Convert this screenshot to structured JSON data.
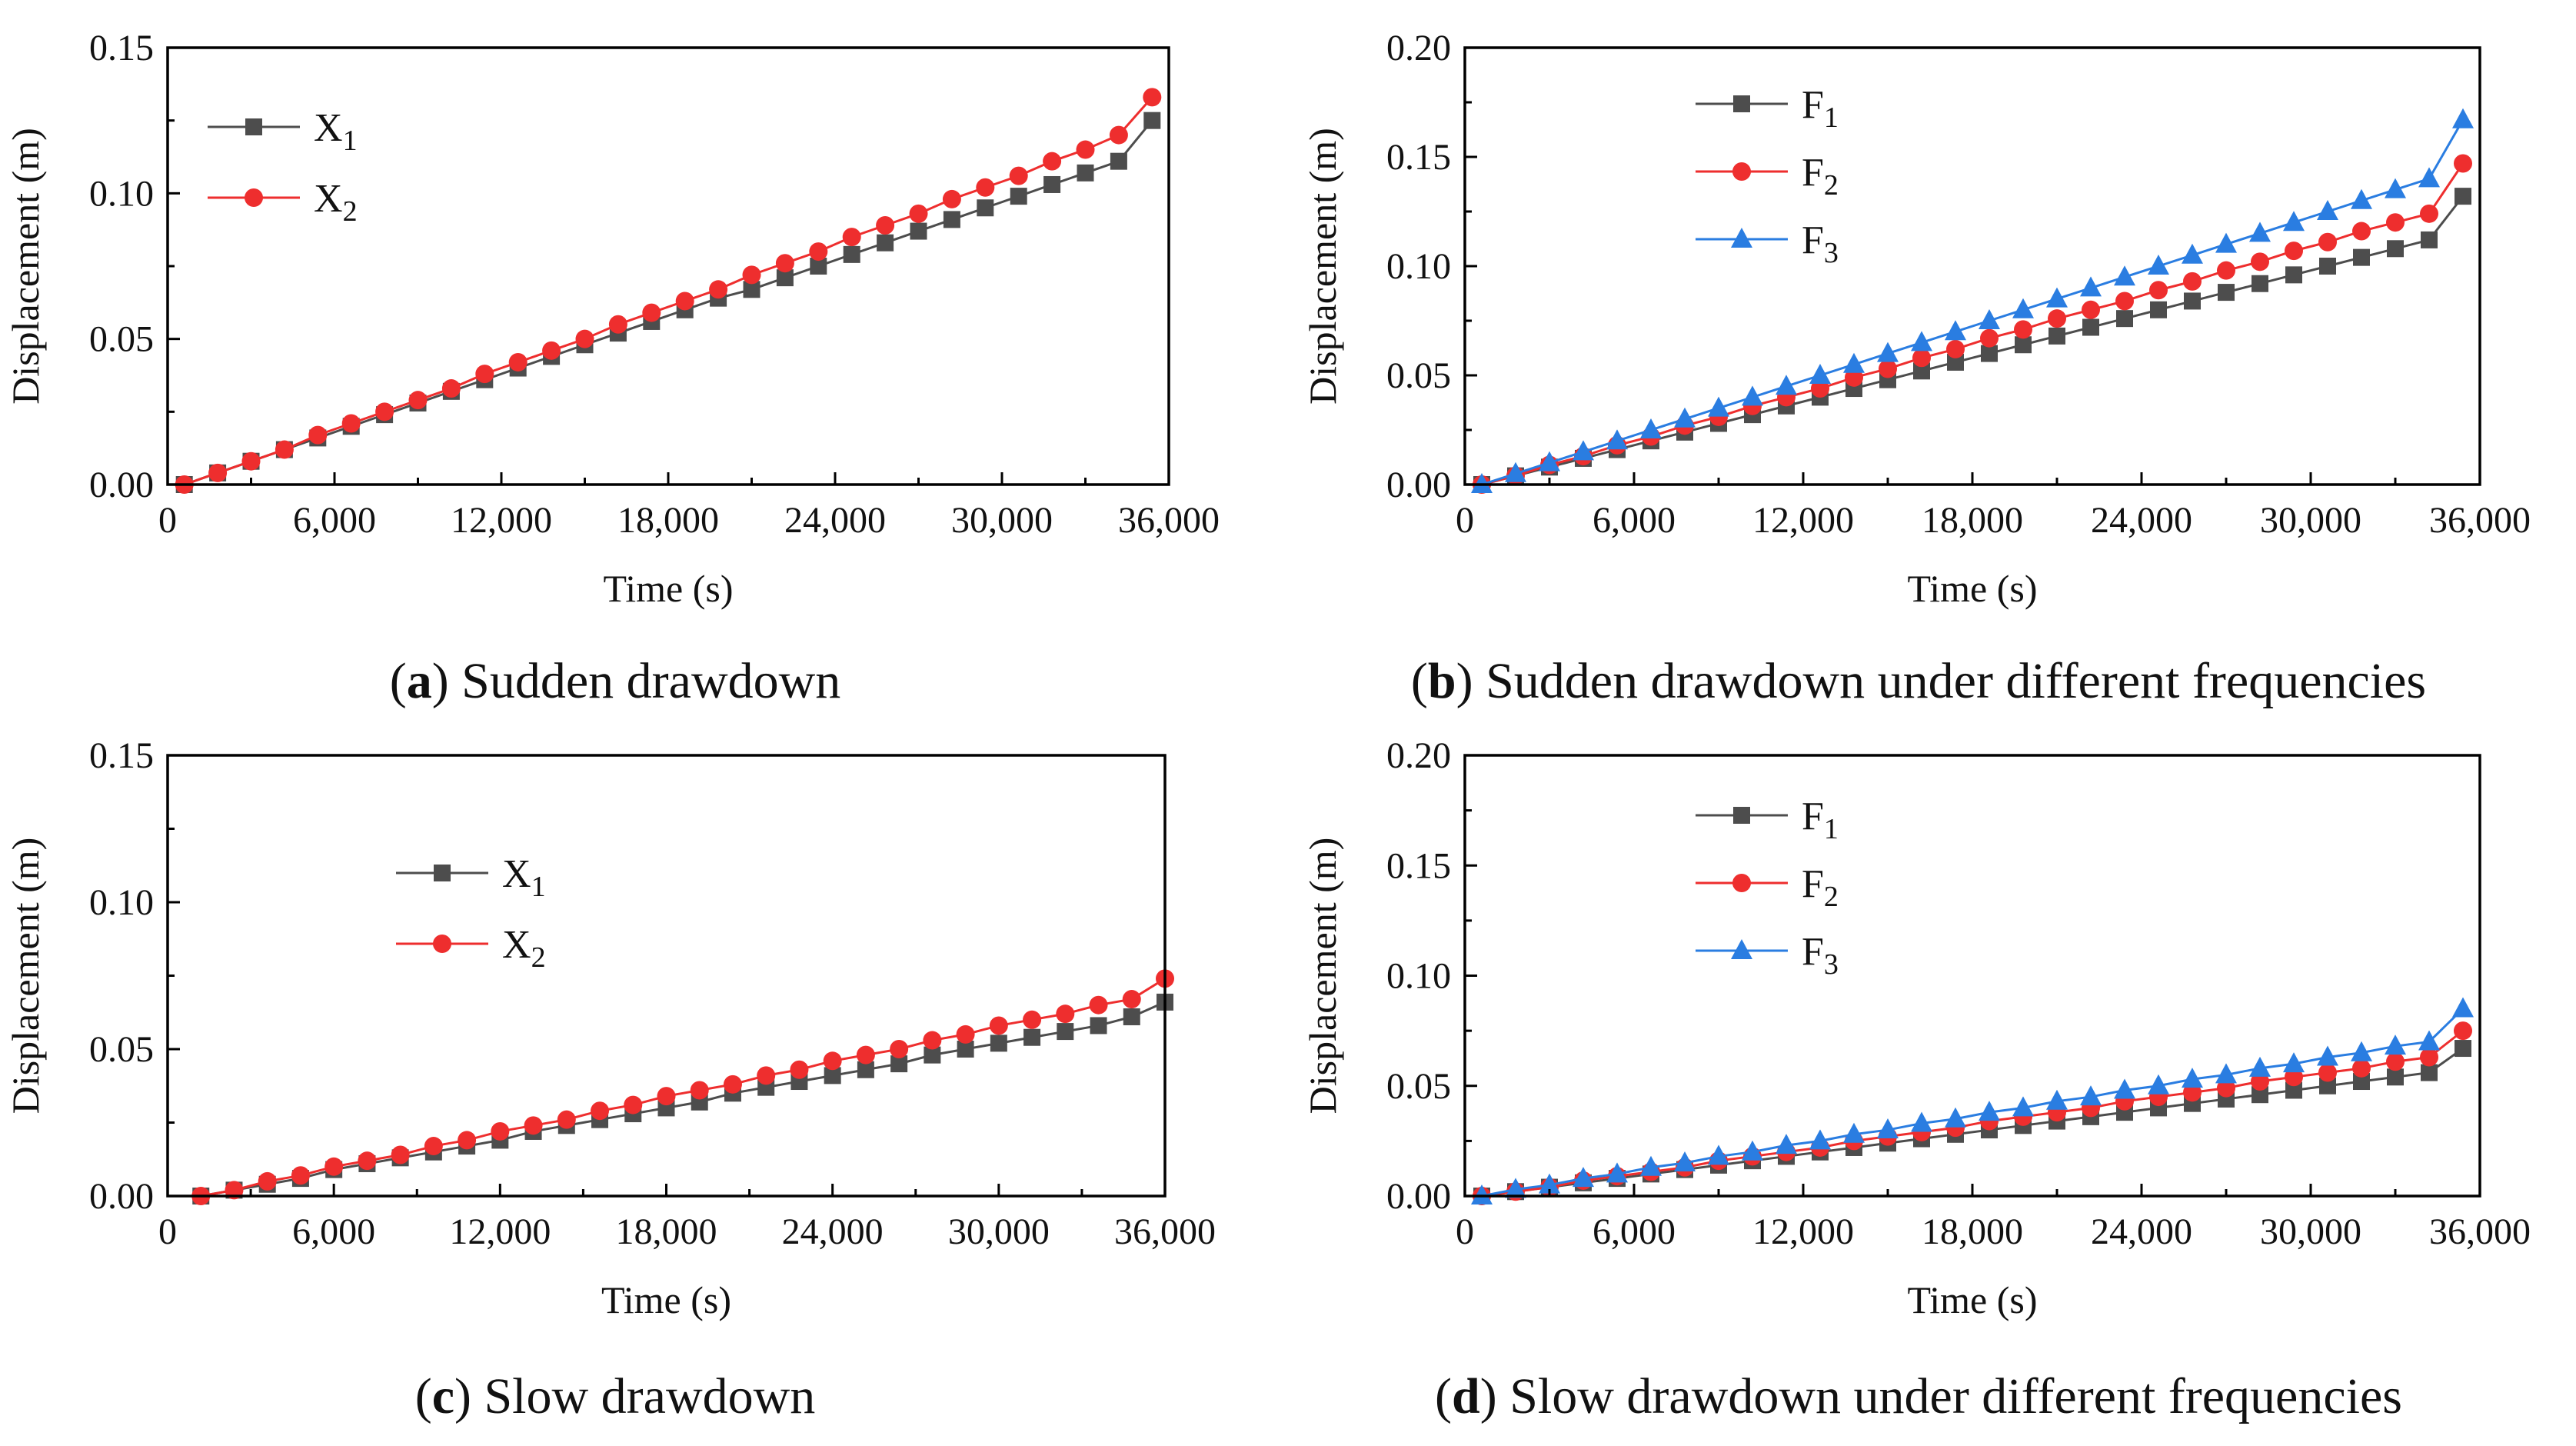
{
  "captions": [
    {
      "letter": "a",
      "text": "Sudden drawdown"
    },
    {
      "letter": "b",
      "text": "Sudden drawdown under different frequencies"
    },
    {
      "letter": "c",
      "text": "Slow drawdown"
    },
    {
      "letter": "d",
      "text": "Slow drawdown under different frequencies"
    }
  ],
  "chart_data": [
    {
      "type": "line",
      "panel": "a",
      "xlabel": "Time (s)",
      "ylabel": "Displacement (m)",
      "xlim": [
        0,
        36000
      ],
      "ylim": [
        0,
        0.15
      ],
      "xticks": [
        0,
        6000,
        12000,
        18000,
        24000,
        30000,
        36000
      ],
      "yticks": [
        0,
        0.05,
        0.1,
        0.15
      ],
      "xtick_labels": [
        "0",
        "6,000",
        "12,000",
        "18,000",
        "24,000",
        "30,000",
        "36,000"
      ],
      "ytick_labels": [
        "0.00",
        "0.05",
        "0.10",
        "0.15"
      ],
      "legend_position": "top-left",
      "x": [
        600,
        1800,
        3000,
        4200,
        5400,
        6600,
        7800,
        9000,
        10200,
        11400,
        12600,
        13800,
        15000,
        16200,
        17400,
        18600,
        19800,
        21000,
        22200,
        23400,
        24600,
        25800,
        27000,
        28200,
        29400,
        30600,
        31800,
        33000,
        34200,
        35400
      ],
      "series": [
        {
          "name": "X",
          "sub": "1",
          "color": "#4d4d4d",
          "marker": "square",
          "values": [
            0.0,
            0.004,
            0.008,
            0.012,
            0.016,
            0.02,
            0.024,
            0.028,
            0.032,
            0.036,
            0.04,
            0.044,
            0.048,
            0.052,
            0.056,
            0.06,
            0.064,
            0.067,
            0.071,
            0.075,
            0.079,
            0.083,
            0.087,
            0.091,
            0.095,
            0.099,
            0.103,
            0.107,
            0.111,
            0.125
          ]
        },
        {
          "name": "X",
          "sub": "2",
          "color": "#ee2e2e",
          "marker": "circle",
          "values": [
            0.0,
            0.004,
            0.008,
            0.012,
            0.017,
            0.021,
            0.025,
            0.029,
            0.033,
            0.038,
            0.042,
            0.046,
            0.05,
            0.055,
            0.059,
            0.063,
            0.067,
            0.072,
            0.076,
            0.08,
            0.085,
            0.089,
            0.093,
            0.098,
            0.102,
            0.106,
            0.111,
            0.115,
            0.12,
            0.133
          ]
        }
      ]
    },
    {
      "type": "line",
      "panel": "b",
      "xlabel": "Time (s)",
      "ylabel": "Displacement (m)",
      "xlim": [
        0,
        36000
      ],
      "ylim": [
        0,
        0.2
      ],
      "xticks": [
        0,
        6000,
        12000,
        18000,
        24000,
        30000,
        36000
      ],
      "yticks": [
        0,
        0.05,
        0.1,
        0.15,
        0.2
      ],
      "xtick_labels": [
        "0",
        "6,000",
        "12,000",
        "18,000",
        "24,000",
        "30,000",
        "36,000"
      ],
      "ytick_labels": [
        "0.00",
        "0.05",
        "0.10",
        "0.15",
        "0.20"
      ],
      "legend_position": "top-center",
      "x": [
        600,
        1800,
        3000,
        4200,
        5400,
        6600,
        7800,
        9000,
        10200,
        11400,
        12600,
        13800,
        15000,
        16200,
        17400,
        18600,
        19800,
        21000,
        22200,
        23400,
        24600,
        25800,
        27000,
        28200,
        29400,
        30600,
        31800,
        33000,
        34200,
        35400
      ],
      "series": [
        {
          "name": "F",
          "sub": "1",
          "color": "#4d4d4d",
          "marker": "square",
          "values": [
            0.0,
            0.004,
            0.008,
            0.012,
            0.016,
            0.02,
            0.024,
            0.028,
            0.032,
            0.036,
            0.04,
            0.044,
            0.048,
            0.052,
            0.056,
            0.06,
            0.064,
            0.068,
            0.072,
            0.076,
            0.08,
            0.084,
            0.088,
            0.092,
            0.096,
            0.1,
            0.104,
            0.108,
            0.112,
            0.132
          ]
        },
        {
          "name": "F",
          "sub": "2",
          "color": "#ee2e2e",
          "marker": "circle",
          "values": [
            0.0,
            0.004,
            0.009,
            0.013,
            0.018,
            0.022,
            0.027,
            0.031,
            0.036,
            0.04,
            0.044,
            0.049,
            0.053,
            0.058,
            0.062,
            0.067,
            0.071,
            0.076,
            0.08,
            0.084,
            0.089,
            0.093,
            0.098,
            0.102,
            0.107,
            0.111,
            0.116,
            0.12,
            0.124,
            0.147
          ]
        },
        {
          "name": "F",
          "sub": "3",
          "color": "#2a7de1",
          "marker": "triangle",
          "values": [
            0.0,
            0.005,
            0.01,
            0.015,
            0.02,
            0.025,
            0.03,
            0.035,
            0.04,
            0.045,
            0.05,
            0.055,
            0.06,
            0.065,
            0.07,
            0.075,
            0.08,
            0.085,
            0.09,
            0.095,
            0.1,
            0.105,
            0.11,
            0.115,
            0.12,
            0.125,
            0.13,
            0.135,
            0.14,
            0.167
          ]
        }
      ]
    },
    {
      "type": "line",
      "panel": "c",
      "xlabel": "Time (s)",
      "ylabel": "Displacement (m)",
      "xlim": [
        0,
        36000
      ],
      "ylim": [
        0,
        0.15
      ],
      "xticks": [
        0,
        6000,
        12000,
        18000,
        24000,
        30000,
        36000
      ],
      "yticks": [
        0,
        0.05,
        0.1,
        0.15
      ],
      "xtick_labels": [
        "0",
        "6,000",
        "12,000",
        "18,000",
        "24,000",
        "30,000",
        "36,000"
      ],
      "ytick_labels": [
        "0.00",
        "0.05",
        "0.10",
        "0.15"
      ],
      "legend_position": "upper-center",
      "x": [
        1200,
        2400,
        3600,
        4800,
        6000,
        7200,
        8400,
        9600,
        10800,
        12000,
        13200,
        14400,
        15600,
        16800,
        18000,
        19200,
        20400,
        21600,
        22800,
        24000,
        25200,
        26400,
        27600,
        28800,
        30000,
        31200,
        32400,
        33600,
        34800,
        36000
      ],
      "series": [
        {
          "name": "X",
          "sub": "1",
          "color": "#4d4d4d",
          "marker": "square",
          "values": [
            0.0,
            0.002,
            0.004,
            0.006,
            0.009,
            0.011,
            0.013,
            0.015,
            0.017,
            0.019,
            0.022,
            0.024,
            0.026,
            0.028,
            0.03,
            0.032,
            0.035,
            0.037,
            0.039,
            0.041,
            0.043,
            0.045,
            0.048,
            0.05,
            0.052,
            0.054,
            0.056,
            0.058,
            0.061,
            0.066
          ]
        },
        {
          "name": "X",
          "sub": "2",
          "color": "#ee2e2e",
          "marker": "circle",
          "values": [
            0.0,
            0.002,
            0.005,
            0.007,
            0.01,
            0.012,
            0.014,
            0.017,
            0.019,
            0.022,
            0.024,
            0.026,
            0.029,
            0.031,
            0.034,
            0.036,
            0.038,
            0.041,
            0.043,
            0.046,
            0.048,
            0.05,
            0.053,
            0.055,
            0.058,
            0.06,
            0.062,
            0.065,
            0.067,
            0.074
          ]
        }
      ]
    },
    {
      "type": "line",
      "panel": "d",
      "xlabel": "Time (s)",
      "ylabel": "Displacement (m)",
      "xlim": [
        0,
        36000
      ],
      "ylim": [
        0,
        0.2
      ],
      "xticks": [
        0,
        6000,
        12000,
        18000,
        24000,
        30000,
        36000
      ],
      "yticks": [
        0,
        0.05,
        0.1,
        0.15,
        0.2
      ],
      "xtick_labels": [
        "0",
        "6,000",
        "12,000",
        "18,000",
        "24,000",
        "30,000",
        "36,000"
      ],
      "ytick_labels": [
        "0.00",
        "0.05",
        "0.10",
        "0.15",
        "0.20"
      ],
      "legend_position": "top-center",
      "x": [
        600,
        1800,
        3000,
        4200,
        5400,
        6600,
        7800,
        9000,
        10200,
        11400,
        12600,
        13800,
        15000,
        16200,
        17400,
        18600,
        19800,
        21000,
        22200,
        23400,
        24600,
        25800,
        27000,
        28200,
        29400,
        30600,
        31800,
        33000,
        34200,
        35400
      ],
      "series": [
        {
          "name": "F",
          "sub": "1",
          "color": "#4d4d4d",
          "marker": "square",
          "values": [
            0.0,
            0.002,
            0.004,
            0.006,
            0.008,
            0.01,
            0.012,
            0.014,
            0.016,
            0.018,
            0.02,
            0.022,
            0.024,
            0.026,
            0.028,
            0.03,
            0.032,
            0.034,
            0.036,
            0.038,
            0.04,
            0.042,
            0.044,
            0.046,
            0.048,
            0.05,
            0.052,
            0.054,
            0.056,
            0.067
          ]
        },
        {
          "name": "F",
          "sub": "2",
          "color": "#ee2e2e",
          "marker": "circle",
          "values": [
            0.0,
            0.002,
            0.004,
            0.007,
            0.009,
            0.011,
            0.013,
            0.016,
            0.018,
            0.02,
            0.022,
            0.025,
            0.027,
            0.029,
            0.031,
            0.034,
            0.036,
            0.038,
            0.04,
            0.043,
            0.045,
            0.047,
            0.049,
            0.052,
            0.054,
            0.056,
            0.058,
            0.061,
            0.063,
            0.075
          ]
        },
        {
          "name": "F",
          "sub": "3",
          "color": "#2a7de1",
          "marker": "triangle",
          "values": [
            0.0,
            0.003,
            0.005,
            0.008,
            0.01,
            0.013,
            0.015,
            0.018,
            0.02,
            0.023,
            0.025,
            0.028,
            0.03,
            0.033,
            0.035,
            0.038,
            0.04,
            0.043,
            0.045,
            0.048,
            0.05,
            0.053,
            0.055,
            0.058,
            0.06,
            0.063,
            0.065,
            0.068,
            0.07,
            0.085
          ]
        }
      ]
    }
  ]
}
